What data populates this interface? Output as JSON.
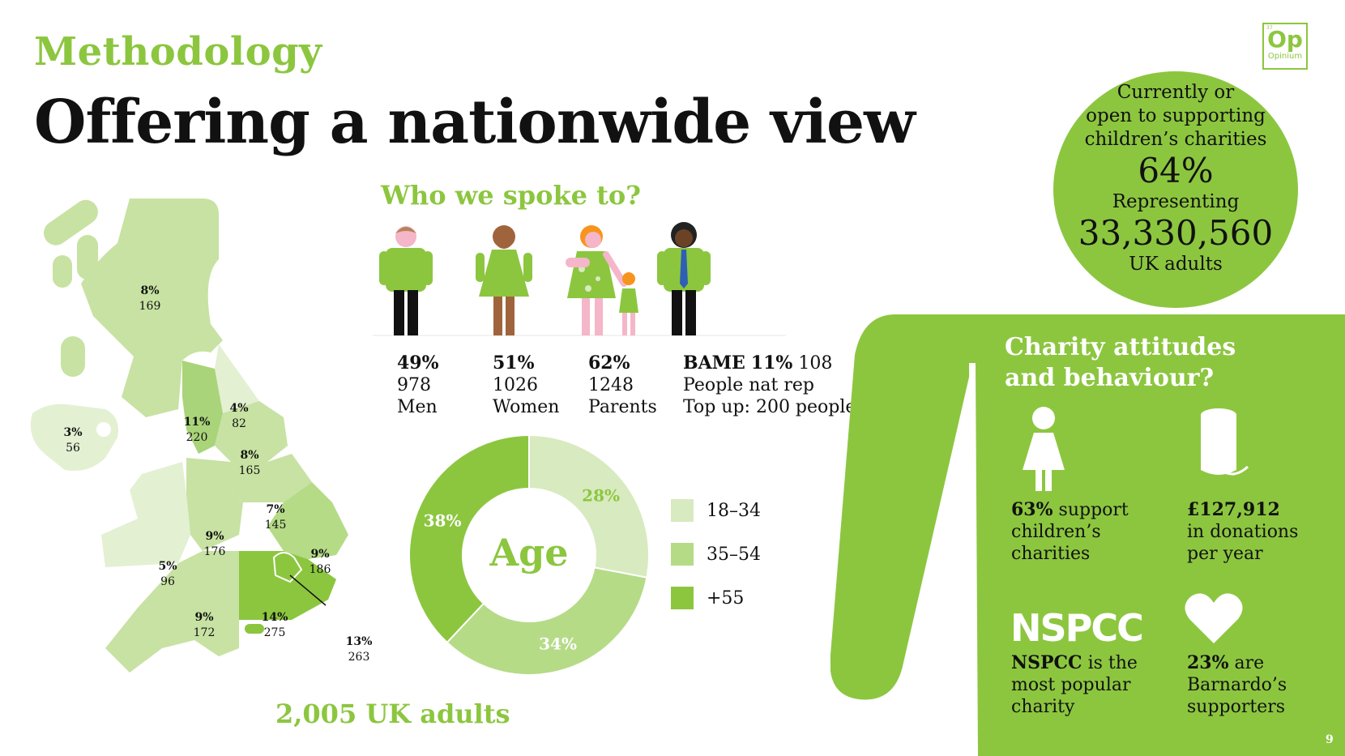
{
  "header": {
    "kicker": "Methodology",
    "title": "Offering a nationwide view"
  },
  "logo": {
    "mark": "Op",
    "name": "Opinium",
    "superscript": "37"
  },
  "summary_circle": {
    "line1": "Currently or",
    "line2": "open to supporting",
    "line3": "children’s charities",
    "percent": "64%",
    "representing": "Representing",
    "count": "33,330,560",
    "unit": "UK adults"
  },
  "who": {
    "heading": "Who we spoke to?",
    "groups": [
      {
        "pct": "49%",
        "count": "978",
        "label": "Men"
      },
      {
        "pct": "51%",
        "count": "1026",
        "label": "Women"
      },
      {
        "pct": "62%",
        "count": "1248",
        "label": "Parents"
      },
      {
        "prefix": "BAME",
        "pct": "11%",
        "count": "108",
        "line2": "People nat rep",
        "line3": "Top up: 200 people"
      }
    ]
  },
  "age": {
    "center_label": "Age",
    "legend": [
      {
        "label": "18–34",
        "color": "#d8eabf"
      },
      {
        "label": "35–54",
        "color": "#b5db87"
      },
      {
        "label": "+55",
        "color": "#8cc63f"
      }
    ]
  },
  "chart_data": {
    "type": "pie",
    "title": "",
    "categories": [
      "18–34",
      "35–54",
      "+55"
    ],
    "values": [
      28,
      34,
      38
    ],
    "labels": [
      "28%",
      "34%",
      "38%"
    ],
    "donut": true
  },
  "map": {
    "regions": [
      {
        "pct": "8%",
        "count": "169"
      },
      {
        "pct": "3%",
        "count": "56"
      },
      {
        "pct": "4%",
        "count": "82"
      },
      {
        "pct": "11%",
        "count": "220"
      },
      {
        "pct": "8%",
        "count": "165"
      },
      {
        "pct": "7%",
        "count": "145"
      },
      {
        "pct": "9%",
        "count": "176"
      },
      {
        "pct": "9%",
        "count": "186"
      },
      {
        "pct": "5%",
        "count": "96"
      },
      {
        "pct": "9%",
        "count": "172"
      },
      {
        "pct": "14%",
        "count": "275"
      },
      {
        "pct": "13%",
        "count": "263"
      }
    ],
    "total": "2,005 UK adults"
  },
  "charity": {
    "title_line1": "Charity attitudes",
    "title_line2": "and behaviour?",
    "support": {
      "pct": "63%",
      "rest1": "support",
      "line2": "children’s",
      "line3": "charities"
    },
    "donations": {
      "amount": "£127,912",
      "line2": "in donations",
      "line3": "per year"
    },
    "nspcc": {
      "logo": "NSPCC",
      "bold": "NSPCC",
      "rest1": "is the",
      "line2": "most popular",
      "line3": "charity"
    },
    "barnardos": {
      "pct": "23%",
      "rest1": "are",
      "line2": "Barnardo’s",
      "line3": "supporters"
    }
  },
  "page_number": "9"
}
